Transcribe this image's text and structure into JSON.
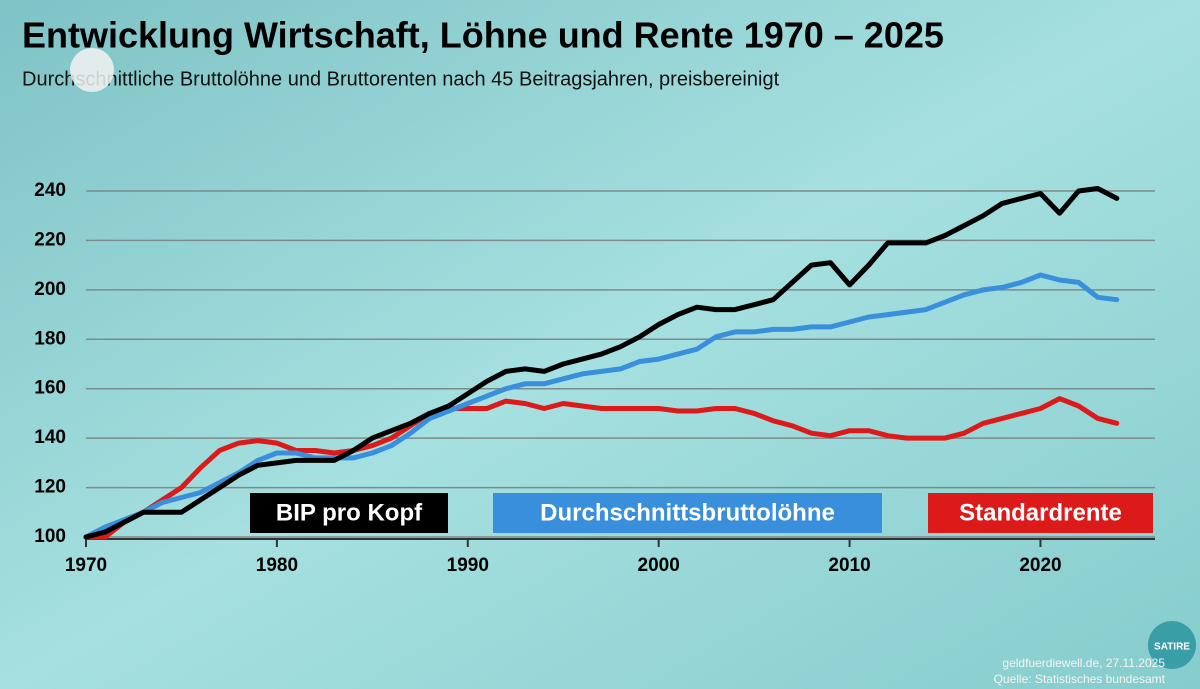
{
  "chart_data": {
    "type": "line",
    "title": "Entwicklung Wirtschaft, Löhne und Rente 1970 – 2025",
    "subtitle": "Durchschnittliche Bruttolöhne und Bruttorenten nach 45 Beitragsjahren, preisbereinigt",
    "source_line": "geldfuerdiewell.de, 27.11.2025",
    "source": "Quelle: Statistisches bundesamt",
    "badge": "SATIRE",
    "x": [
      1970,
      1971,
      1972,
      1973,
      1974,
      1975,
      1976,
      1977,
      1978,
      1979,
      1980,
      1981,
      1982,
      1983,
      1984,
      1985,
      1986,
      1987,
      1988,
      1989,
      1990,
      1991,
      1992,
      1993,
      1994,
      1995,
      1996,
      1997,
      1998,
      1999,
      2000,
      2001,
      2002,
      2003,
      2004,
      2005,
      2006,
      2007,
      2008,
      2009,
      2010,
      2011,
      2012,
      2013,
      2014,
      2015,
      2016,
      2017,
      2018,
      2019,
      2020,
      2021,
      2022,
      2023,
      2024
    ],
    "series": [
      {
        "name": "BIP pro Kopf",
        "color": "#000000",
        "values": [
          100,
          102,
          106,
          110,
          110,
          110,
          115,
          120,
          125,
          129,
          130,
          131,
          131,
          131,
          135,
          140,
          143,
          146,
          150,
          153,
          158,
          163,
          167,
          168,
          167,
          170,
          172,
          174,
          177,
          181,
          186,
          190,
          193,
          192,
          192,
          194,
          196,
          203,
          210,
          211,
          202,
          210,
          219,
          219,
          219,
          222,
          226,
          230,
          235,
          237,
          239,
          231,
          240,
          241,
          237
        ]
      },
      {
        "name": "Durchschnittsbruttolöhne",
        "color": "#3a8fdc",
        "values": [
          100,
          104,
          107,
          110,
          114,
          116,
          118,
          122,
          126,
          131,
          134,
          134,
          132,
          132,
          132,
          134,
          137,
          142,
          148,
          151,
          154,
          157,
          160,
          162,
          162,
          164,
          166,
          167,
          168,
          171,
          172,
          174,
          176,
          181,
          183,
          183,
          184,
          184,
          185,
          185,
          187,
          189,
          190,
          191,
          192,
          195,
          198,
          200,
          201,
          203,
          206,
          204,
          203,
          197,
          196
        ]
      },
      {
        "name": "Standardrente",
        "color": "#dc1a1a",
        "values": [
          100,
          100,
          106,
          110,
          115,
          120,
          128,
          135,
          138,
          139,
          138,
          135,
          135,
          134,
          135,
          137,
          140,
          145,
          150,
          152,
          152,
          152,
          155,
          154,
          152,
          154,
          153,
          152,
          152,
          152,
          152,
          151,
          151,
          152,
          152,
          150,
          147,
          145,
          142,
          141,
          143,
          143,
          141,
          140,
          140,
          140,
          142,
          146,
          148,
          150,
          152,
          156,
          153,
          148,
          146
        ]
      }
    ],
    "xlim": [
      1970,
      2026
    ],
    "xticks": [
      1970,
      1980,
      1990,
      2000,
      2010,
      2020
    ],
    "ylim": [
      100,
      240
    ],
    "yticks": [
      100,
      120,
      140,
      160,
      180,
      200,
      220,
      240
    ],
    "grid": true
  }
}
